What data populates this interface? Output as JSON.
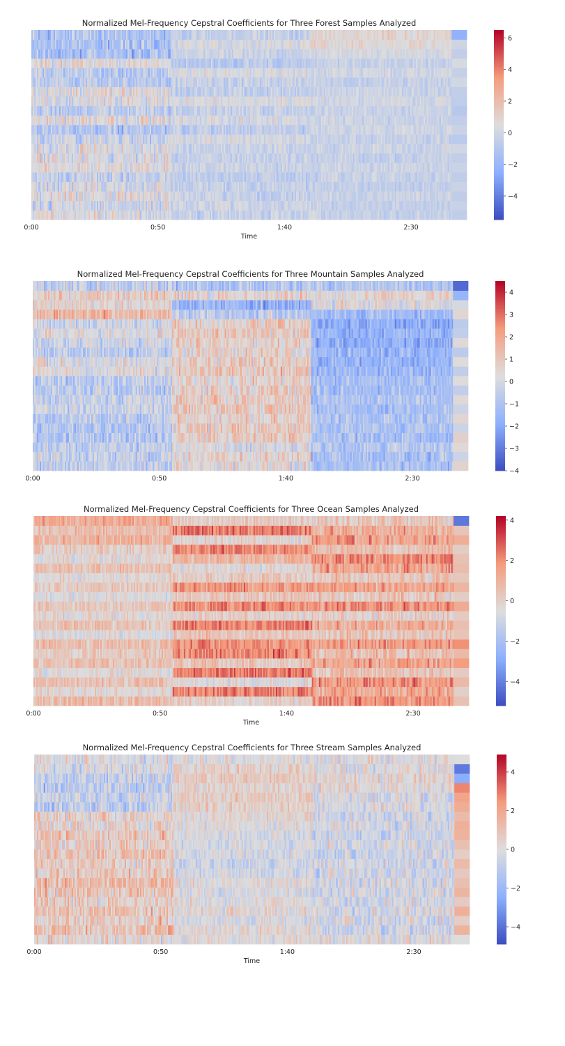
{
  "chart_data": [
    {
      "type": "heatmap",
      "title": "Normalized Mel-Frequency Cepstral Coefficients for Three Forest Samples Analyzed",
      "xlabel": "Time",
      "ylabel": "",
      "x_tick_labels": [
        "0:00",
        "0:50",
        "1:40",
        "2:30"
      ],
      "x_tick_seconds": [
        0,
        50,
        100,
        150
      ],
      "duration_seconds": 172,
      "segment_boundaries_seconds": [
        0,
        55,
        110,
        166,
        172
      ],
      "n_coefficients": 20,
      "colorbar_ticks": [
        -4,
        -2,
        0,
        2,
        4,
        6
      ],
      "color_range": [
        -5.5,
        6.5
      ],
      "colormap": "coolwarm",
      "segment_profiles": [
        [
          0.3,
          -0.2,
          0.5,
          0.1,
          -0.4,
          0.6,
          0.2,
          0.4,
          -0.3,
          -1.2,
          0.6,
          -0.5,
          0.3,
          0.5,
          -0.6,
          -0.8,
          0.7,
          -1.6,
          -1.3,
          -1.2
        ],
        [
          -0.2,
          0.0,
          -0.4,
          -0.3,
          -0.6,
          -0.2,
          -0.4,
          -0.3,
          0.2,
          -0.6,
          0.2,
          -0.4,
          0.3,
          -0.5,
          -0.3,
          0.3,
          -0.8,
          -0.2,
          0.2,
          -0.4
        ],
        [
          -0.3,
          -0.4,
          -0.2,
          -0.5,
          -0.3,
          -0.2,
          -0.4,
          -0.2,
          -0.3,
          0.0,
          -0.2,
          -0.3,
          0.1,
          -0.2,
          -0.4,
          0.0,
          -0.3,
          0.2,
          0.7,
          0.9
        ],
        [
          -0.6,
          -0.3,
          -0.6,
          -0.2,
          -0.6,
          -0.2,
          -0.5,
          0.0,
          -0.8,
          -0.2,
          -0.5,
          -0.9,
          -0.6,
          -0.5,
          0.0,
          -0.4,
          0.2,
          -0.5,
          -0.1,
          -2.3
        ]
      ],
      "segment_variability": [
        1.4,
        0.9,
        0.7,
        0.0
      ]
    },
    {
      "type": "heatmap",
      "title": "Normalized Mel-Frequency Cepstral Coefficients for Three Mountain Samples Analyzed",
      "xlabel": "",
      "ylabel": "",
      "x_tick_labels": [
        "0:00",
        "0:50",
        "1:40",
        "2:30"
      ],
      "x_tick_seconds": [
        0,
        50,
        100,
        150
      ],
      "duration_seconds": 172,
      "segment_boundaries_seconds": [
        0,
        55,
        110,
        166,
        172
      ],
      "n_coefficients": 20,
      "colorbar_ticks": [
        -4,
        -3,
        -2,
        -1,
        0,
        1,
        2,
        3,
        4
      ],
      "color_range": [
        -4,
        4.5
      ],
      "colormap": "coolwarm",
      "segment_profiles": [
        [
          -0.6,
          -0.4,
          -0.5,
          -0.8,
          -0.9,
          -0.6,
          -0.3,
          -0.4,
          -0.5,
          -0.6,
          0.3,
          0.2,
          -0.6,
          -0.2,
          0.2,
          -0.3,
          1.5,
          0.6,
          0.8,
          -0.5
        ],
        [
          0.3,
          0.6,
          0.2,
          0.8,
          0.9,
          0.7,
          1.0,
          0.9,
          0.8,
          0.6,
          1.0,
          0.9,
          0.6,
          0.8,
          1.0,
          0.7,
          -0.6,
          -1.5,
          0.6,
          -1.0
        ],
        [
          -1.0,
          -1.1,
          -0.8,
          -1.2,
          -1.0,
          -0.9,
          -1.1,
          -1.0,
          -1.2,
          -1.2,
          -1.4,
          -1.6,
          -1.5,
          -1.8,
          -1.6,
          -1.9,
          -1.3,
          0.3,
          0.6,
          -0.8
        ],
        [
          0.6,
          -0.2,
          0.4,
          0.7,
          -0.2,
          0.5,
          -0.2,
          0.4,
          -0.5,
          0.3,
          -0.5,
          0.3,
          -0.6,
          0.4,
          -0.5,
          -0.6,
          0.5,
          0.0,
          -1.6,
          -3.4
        ]
      ],
      "segment_variability": [
        1.0,
        1.1,
        0.9,
        0.0
      ]
    },
    {
      "type": "heatmap",
      "title": "Normalized Mel-Frequency Cepstral Coefficients for Three Ocean Samples Analyzed",
      "xlabel": "Time",
      "ylabel": "",
      "x_tick_labels": [
        "0:00",
        "0:50",
        "1:40",
        "2:30"
      ],
      "x_tick_seconds": [
        0,
        50,
        100,
        150
      ],
      "duration_seconds": 172,
      "segment_boundaries_seconds": [
        0,
        55,
        110,
        166,
        172
      ],
      "n_coefficients": 20,
      "colorbar_ticks": [
        -4,
        -2,
        0,
        2,
        4
      ],
      "color_range": [
        -5.2,
        4.2
      ],
      "colormap": "coolwarm",
      "segment_profiles": [
        [
          0.8,
          -0.3,
          0.6,
          -0.4,
          0.5,
          0.2,
          0.7,
          -0.4,
          0.4,
          -0.2,
          0.3,
          -0.5,
          0.2,
          -0.4,
          0.5,
          -0.3,
          0.1,
          1.0,
          0.6,
          1.3
        ],
        [
          0.0,
          2.2,
          -0.4,
          2.4,
          0.2,
          2.2,
          2.0,
          0.4,
          2.3,
          0.0,
          2.1,
          0.3,
          1.8,
          0.2,
          -0.3,
          1.0,
          2.1,
          -0.2,
          2.4,
          0.1
        ],
        [
          1.9,
          1.2,
          1.9,
          0.5,
          1.5,
          0.6,
          1.6,
          0.3,
          1.2,
          0.0,
          1.9,
          0.4,
          1.4,
          0.3,
          1.6,
          2.1,
          0.6,
          1.6,
          1.2,
          0.4
        ],
        [
          0.5,
          0.0,
          0.8,
          0.2,
          1.8,
          0.8,
          2.0,
          0.4,
          0.6,
          0.2,
          1.3,
          0.1,
          0.9,
          0.3,
          0.7,
          0.5,
          0.1,
          1.2,
          0.4,
          -4.2
        ]
      ],
      "segment_variability": [
        0.8,
        0.9,
        1.1,
        0.0
      ]
    },
    {
      "type": "heatmap",
      "title": "Normalized Mel-Frequency Cepstral Coefficients for Three Stream Samples Analyzed",
      "xlabel": "Time",
      "ylabel": "",
      "x_tick_labels": [
        "0:00",
        "0:50",
        "1:40",
        "2:30"
      ],
      "x_tick_seconds": [
        0,
        50,
        100,
        150
      ],
      "duration_seconds": 172,
      "segment_boundaries_seconds": [
        0,
        55,
        110,
        166,
        172
      ],
      "n_coefficients": 20,
      "colorbar_ticks": [
        -4,
        -2,
        0,
        2,
        4
      ],
      "color_range": [
        -4.9,
        4.9
      ],
      "colormap": "coolwarm",
      "segment_profiles": [
        [
          0.3,
          1.0,
          0.7,
          1.1,
          0.6,
          0.9,
          1.2,
          0.8,
          0.7,
          1.0,
          0.6,
          0.9,
          0.4,
          0.5,
          -0.8,
          -0.6,
          -0.9,
          -0.7,
          -0.3,
          0.0
        ],
        [
          0.1,
          0.2,
          -0.2,
          0.3,
          0.1,
          -0.2,
          0.2,
          -0.3,
          -0.5,
          -0.4,
          -0.3,
          -0.2,
          0.1,
          0.2,
          0.5,
          0.6,
          0.4,
          0.8,
          0.5,
          0.0
        ],
        [
          0.0,
          -0.4,
          -0.3,
          -0.2,
          -0.4,
          -0.3,
          -0.2,
          -0.5,
          -0.3,
          -0.6,
          -0.3,
          -0.5,
          -0.2,
          -0.4,
          -0.3,
          -0.2,
          0.2,
          0.3,
          0.0,
          0.0
        ],
        [
          0.0,
          1.6,
          0.6,
          1.7,
          0.7,
          1.5,
          1.1,
          0.8,
          1.3,
          0.6,
          1.1,
          1.6,
          1.7,
          1.3,
          1.8,
          2.1,
          2.8,
          -2.5,
          -3.8,
          0.0
        ]
      ],
      "segment_variability": [
        1.3,
        0.9,
        1.2,
        0.0
      ]
    }
  ]
}
